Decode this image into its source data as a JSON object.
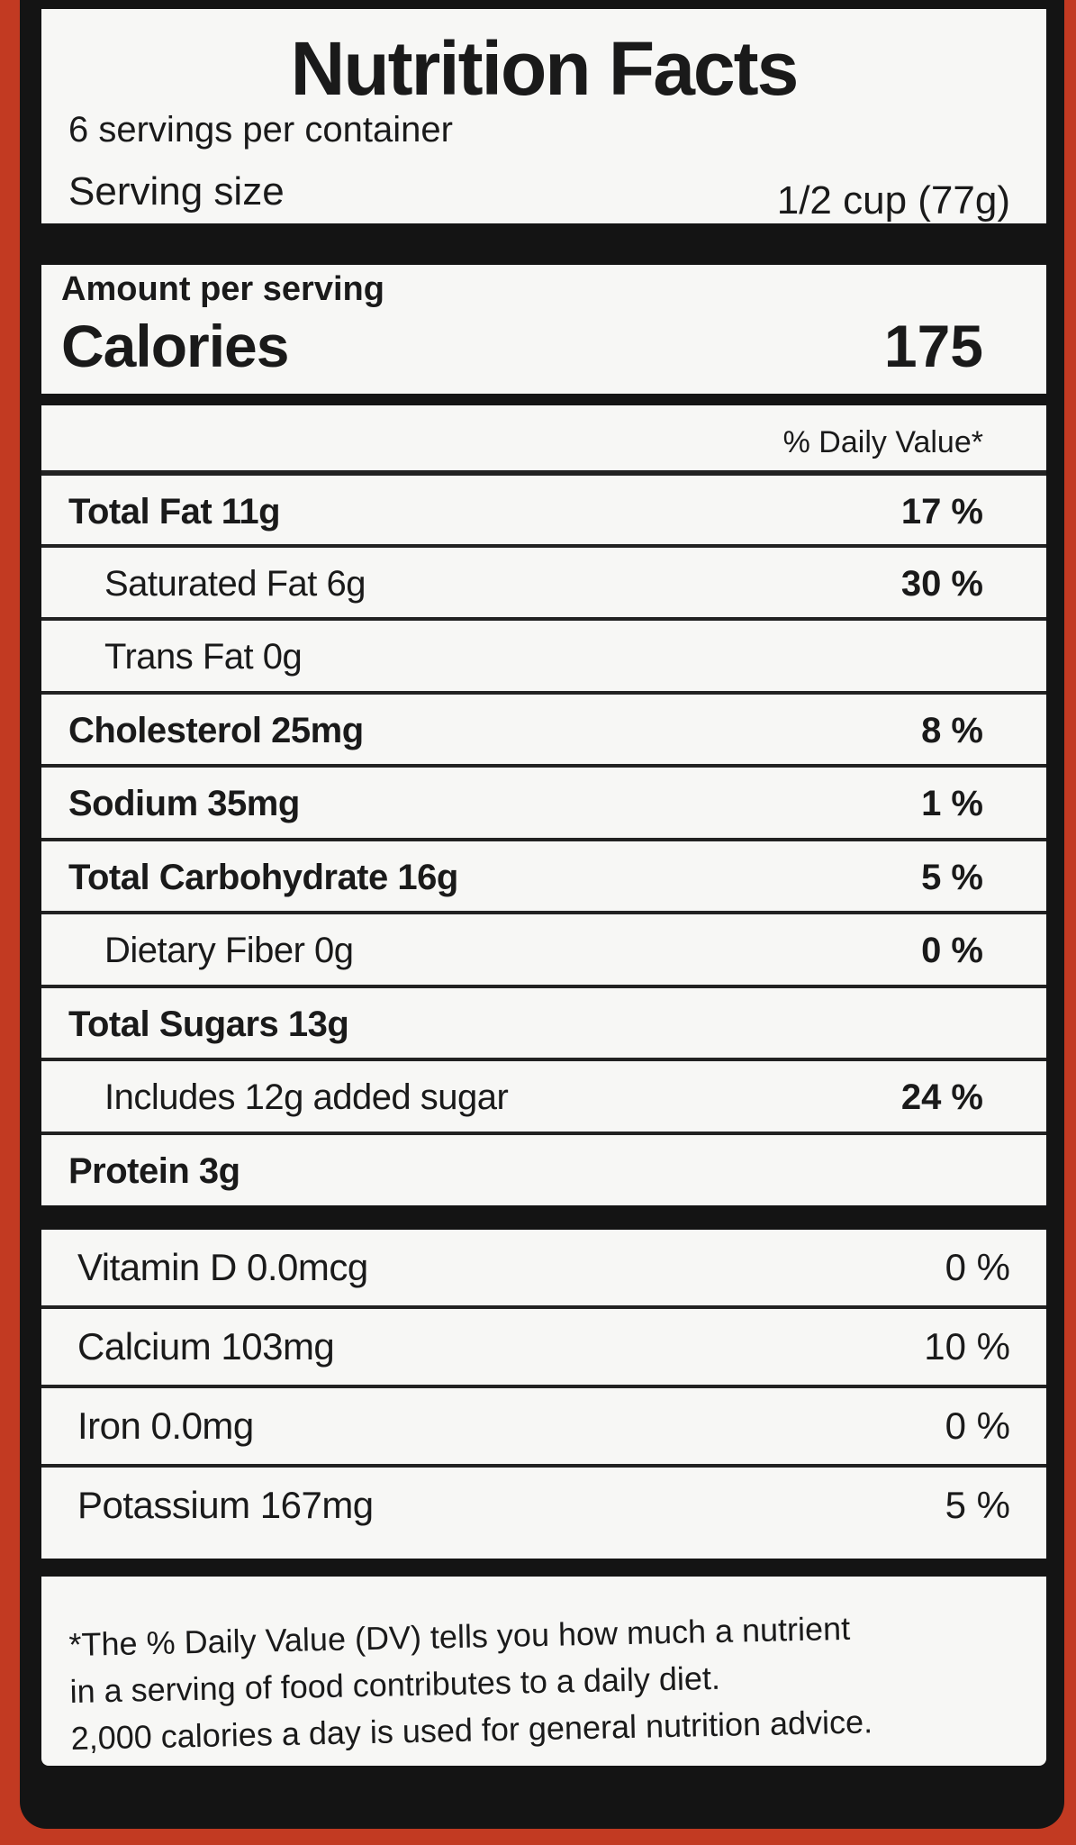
{
  "header": {
    "title": "Nutrition Facts",
    "servings": "6 servings per container",
    "serving_size_label": "Serving size",
    "serving_size_value": "1/2 cup (77g)"
  },
  "calories": {
    "amount_label": "Amount per serving",
    "label": "Calories",
    "value": "175"
  },
  "daily_value_header": "% Daily Value*",
  "nutrients": [
    {
      "label": "Total Fat 11g",
      "dv": "17 %",
      "bold": true,
      "indent": 0
    },
    {
      "label": "Saturated Fat 6g",
      "dv": "30 %",
      "bold": false,
      "indent": 1
    },
    {
      "label": "Trans Fat 0g",
      "dv": "",
      "bold": false,
      "indent": 1
    },
    {
      "label": "Cholesterol 25mg",
      "dv": "8 %",
      "bold": true,
      "indent": 0
    },
    {
      "label": "Sodium 35mg",
      "dv": "1 %",
      "bold": true,
      "indent": 0
    },
    {
      "label": "Total Carbohydrate 16g",
      "dv": "5 %",
      "bold": true,
      "indent": 0
    },
    {
      "label": "Dietary Fiber 0g",
      "dv": "0 %",
      "bold": false,
      "indent": 1
    },
    {
      "label": "Total Sugars 13g",
      "dv": "",
      "bold": true,
      "indent": 0
    },
    {
      "label": "Includes 12g added sugar",
      "dv": "24 %",
      "bold": false,
      "indent": 1
    },
    {
      "label": "Protein 3g",
      "dv": "",
      "bold": true,
      "indent": 0
    }
  ],
  "vitamins": [
    {
      "label": "Vitamin D 0.0mcg",
      "dv": "0 %"
    },
    {
      "label": "Calcium 103mg",
      "dv": "10 %"
    },
    {
      "label": "Iron 0.0mg",
      "dv": "0 %"
    },
    {
      "label": "Potassium 167mg",
      "dv": "5 %"
    }
  ],
  "footnote": [
    "*The % Daily Value (DV) tells you how much a nutrient",
    "in a serving of food contributes to a daily diet.",
    "2,000 calories a day is used for general nutrition advice."
  ],
  "colors": {
    "background": "#c23a22",
    "border": "#141414",
    "label": "#f7f7f5"
  }
}
